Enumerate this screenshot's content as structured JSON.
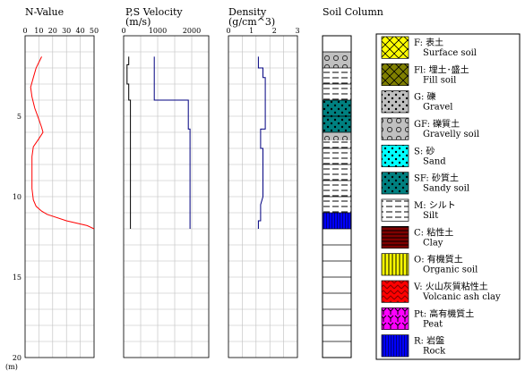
{
  "chart_data": [
    {
      "type": "line",
      "title": "N-Value",
      "x_ticks": [
        "0",
        "10",
        "20",
        "30",
        "40",
        "50"
      ],
      "xlim": [
        0,
        50
      ],
      "y_ticks": [
        "5",
        "10",
        "15",
        "20"
      ],
      "depth_unit": "(m)",
      "ylim": [
        0,
        20
      ],
      "grid": true,
      "series": [
        {
          "color": "#ff0000",
          "points": [
            [
              12,
              1.3
            ],
            [
              8,
              2.0
            ],
            [
              6,
              2.6
            ],
            [
              4,
              3.2
            ],
            [
              5,
              3.8
            ],
            [
              7,
              4.5
            ],
            [
              10,
              5.2
            ],
            [
              12,
              5.7
            ],
            [
              13,
              6.0
            ],
            [
              10,
              6.4
            ],
            [
              6,
              6.9
            ],
            [
              5,
              7.5
            ],
            [
              5,
              8.5
            ],
            [
              5,
              9.5
            ],
            [
              6,
              10.2
            ],
            [
              8,
              10.6
            ],
            [
              12,
              10.9
            ],
            [
              16,
              11.1
            ],
            [
              30,
              11.5
            ],
            [
              45,
              11.8
            ],
            [
              50,
              12.0
            ]
          ]
        }
      ]
    },
    {
      "type": "line",
      "title": "P,S Velocity",
      "unit": "(m/s)",
      "x_ticks": [
        "0",
        "1000",
        "2000"
      ],
      "xlim": [
        0,
        2500
      ],
      "ylim": [
        0,
        20
      ],
      "grid": true,
      "series": [
        {
          "color": "#000080",
          "points": [
            [
              900,
              1.3
            ],
            [
              900,
              4.0
            ],
            [
              900,
              4.0
            ],
            [
              1900,
              4.0
            ],
            [
              1900,
              5.8
            ],
            [
              1950,
              5.8
            ],
            [
              1950,
              12.0
            ]
          ]
        },
        {
          "color": "#000000",
          "points": [
            [
              150,
              1.3
            ],
            [
              150,
              1.8
            ],
            [
              100,
              1.8
            ],
            [
              100,
              3.0
            ],
            [
              150,
              3.0
            ],
            [
              150,
              4.0
            ],
            [
              200,
              4.0
            ],
            [
              200,
              12.0
            ]
          ]
        }
      ]
    },
    {
      "type": "line",
      "title": "Density",
      "unit": "(g/cm^3)",
      "x_ticks": [
        "0",
        "1",
        "2",
        "3"
      ],
      "xlim": [
        0,
        3
      ],
      "ylim": [
        0,
        20
      ],
      "grid": true,
      "series": [
        {
          "color": "#000080",
          "points": [
            [
              1.3,
              1.3
            ],
            [
              1.3,
              2.0
            ],
            [
              1.5,
              2.0
            ],
            [
              1.5,
              2.6
            ],
            [
              1.6,
              2.6
            ],
            [
              1.6,
              4.0
            ],
            [
              1.6,
              5.8
            ],
            [
              1.4,
              5.8
            ],
            [
              1.4,
              7.0
            ],
            [
              1.5,
              7.0
            ],
            [
              1.5,
              8.0
            ],
            [
              1.5,
              9.0
            ],
            [
              1.5,
              10.0
            ],
            [
              1.4,
              10.5
            ],
            [
              1.4,
              11.5
            ],
            [
              1.3,
              11.5
            ],
            [
              1.3,
              12.0
            ]
          ]
        }
      ]
    },
    {
      "type": "table",
      "title": "Soil Column",
      "layers": [
        {
          "code": "GF",
          "top": 1.0,
          "bottom": 2.0
        },
        {
          "code": "M",
          "top": 2.0,
          "bottom": 4.0
        },
        {
          "code": "SF",
          "top": 4.0,
          "bottom": 6.0
        },
        {
          "code": "GF",
          "top": 6.0,
          "bottom": 6.5
        },
        {
          "code": "M",
          "top": 6.5,
          "bottom": 11.0
        },
        {
          "code": "R",
          "top": 11.0,
          "bottom": 12.0
        }
      ]
    }
  ],
  "legend": [
    {
      "code": "F: 表土",
      "en": "Surface soil",
      "color": "#ffff00",
      "pattern": "cross"
    },
    {
      "code": "Fl: 埋土･盛土",
      "en": "Fill soil",
      "color": "#808000",
      "pattern": "cross"
    },
    {
      "code": "G: 礫",
      "en": "Gravel",
      "color": "#c0c0c0",
      "pattern": "dots"
    },
    {
      "code": "GF: 礫質土",
      "en": "Gravelly soil",
      "color": "#c0c0c0",
      "pattern": "circles"
    },
    {
      "code": "S: 砂",
      "en": "Sand",
      "color": "#00ffff",
      "pattern": "dots"
    },
    {
      "code": "SF: 砂質土",
      "en": "Sandy soil",
      "color": "#008080",
      "pattern": "dots"
    },
    {
      "code": "M: シルト",
      "en": "Silt",
      "color": "#ffffff",
      "pattern": "hlines"
    },
    {
      "code": "C: 粘性土",
      "en": "Clay",
      "color": "#800000",
      "pattern": "hlines-thin"
    },
    {
      "code": "O: 有機質土",
      "en": "Organic soil",
      "color": "#ffff00",
      "pattern": "vlines"
    },
    {
      "code": "V: 火山灰質粘性土",
      "en": "Volcanic ash clay",
      "color": "#ff0000",
      "pattern": "zigzag"
    },
    {
      "code": "Pt: 高有機質土",
      "en": "Peat",
      "color": "#ff00ff",
      "pattern": "y"
    },
    {
      "code": "R: 岩盤",
      "en": "Rock",
      "color": "#0000ff",
      "pattern": "vlines-dense"
    }
  ]
}
